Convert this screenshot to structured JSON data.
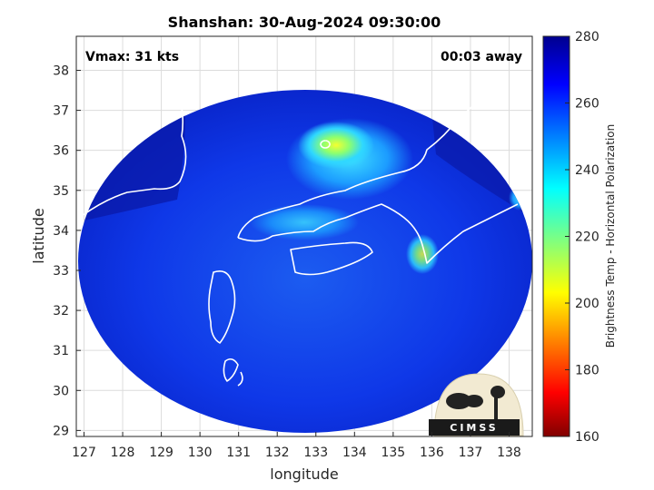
{
  "chart_data": {
    "type": "heatmap",
    "title": "Shanshan: 30-Aug-2024 09:30:00",
    "xlabel": "longitude",
    "ylabel": "latitude",
    "xlim": [
      126.8,
      138.6
    ],
    "ylim": [
      28.85,
      38.85
    ],
    "xticks": [
      127,
      128,
      129,
      130,
      131,
      132,
      133,
      134,
      135,
      136,
      137,
      138
    ],
    "yticks": [
      29,
      30,
      31,
      32,
      33,
      34,
      35,
      36,
      37,
      38
    ],
    "grid": true,
    "colorbar": {
      "label": "Brightness Temp - Horizontal Polarization",
      "range": [
        160,
        280
      ],
      "ticks": [
        160,
        180,
        200,
        220,
        240,
        260,
        280
      ],
      "colormap": "jet",
      "colormap_stops": [
        "#00008f",
        "#0000ff",
        "#00ffff",
        "#ffff00",
        "#ff0000",
        "#800000"
      ]
    },
    "annotations": {
      "left": "Vmax: 31 kts",
      "right": "00:03 away"
    },
    "field": {
      "background_value": 270,
      "land_value": 250,
      "cold_feature_values": [
        210,
        225,
        240
      ],
      "min_visible": 205,
      "max_visible": 275
    },
    "logo_text": "CIMSS"
  },
  "colors": {
    "frame": "#000000",
    "grid": "#dcdcdc",
    "coastline": "#ffffff",
    "outside_swath": "#ffffff"
  }
}
